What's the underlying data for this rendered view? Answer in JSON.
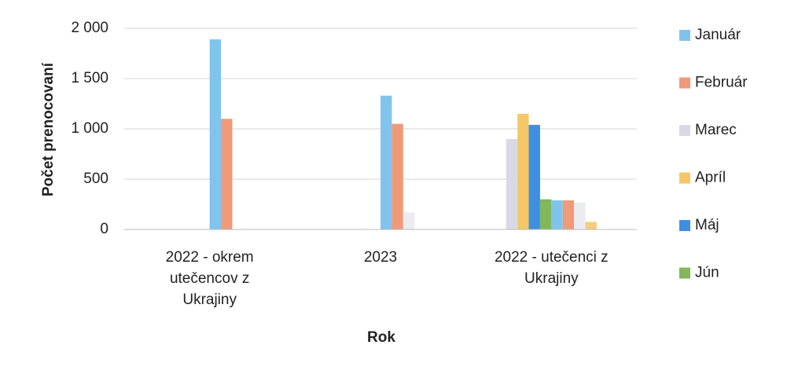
{
  "chart_data": {
    "type": "bar",
    "x_label": "Rok",
    "y_label": "Počet prenocovaní",
    "categories": [
      "2022 - okrem utečencov z Ukrajiny",
      "2023",
      "2022 - utečenci z Ukrajiny"
    ],
    "series": [
      {
        "name": "Január",
        "color": "#80c4ee",
        "values": [
          0,
          0,
          0
        ]
      },
      {
        "name": "Február",
        "color": "#ef9a78",
        "values": [
          0,
          0,
          0
        ]
      },
      {
        "name": "Marec",
        "color": "#d9d9e4",
        "values": [
          0,
          0,
          900
        ]
      },
      {
        "name": "Apríl",
        "color": "#f6c766",
        "values": [
          0,
          0,
          1150
        ]
      },
      {
        "name": "Máj",
        "color": "#3f8fe0",
        "values": [
          0,
          0,
          1040
        ]
      },
      {
        "name": "Jún",
        "color": "#82b75a",
        "values": [
          0,
          0,
          300
        ]
      },
      {
        "color": "#80c4ee",
        "values": [
          1890,
          1330,
          290
        ]
      },
      {
        "color": "#ef9a78",
        "values": [
          1100,
          1050,
          290
        ]
      },
      {
        "color": "#ebebf2",
        "values": [
          0,
          170,
          270
        ]
      },
      {
        "color": "#f6cd7c",
        "values": [
          0,
          0,
          75
        ]
      },
      {
        "color": "#cccccc",
        "values": [
          0,
          0,
          0
        ]
      },
      {
        "color": "#cccccc",
        "values": [
          0,
          0,
          0
        ]
      }
    ],
    "ylim": [
      0,
      2000
    ],
    "yticks": [
      0,
      500,
      {
        "value": 1000,
        "label": "1 000"
      },
      {
        "value": 1500,
        "label": "1 500"
      },
      {
        "value": 2000,
        "label": "2 000"
      }
    ],
    "grid": true,
    "legend": "right"
  }
}
